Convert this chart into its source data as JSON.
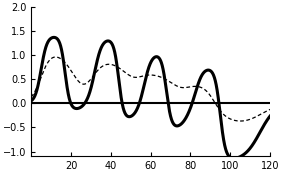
{
  "xlim": [
    0,
    120
  ],
  "ylim": [
    -1.1,
    2.0
  ],
  "xticks": [
    20,
    40,
    60,
    80,
    100,
    120
  ],
  "yticks": [
    -1,
    -0.5,
    0,
    0.5,
    1,
    1.5,
    2
  ],
  "background_color": "#ffffff",
  "solid_color": "black",
  "dashed_color": "black",
  "solid_linewidth": 2.2,
  "dashed_linewidth": 0.9,
  "hline_color": "black",
  "hline_linewidth": 1.5,
  "tick_labelsize": 7
}
